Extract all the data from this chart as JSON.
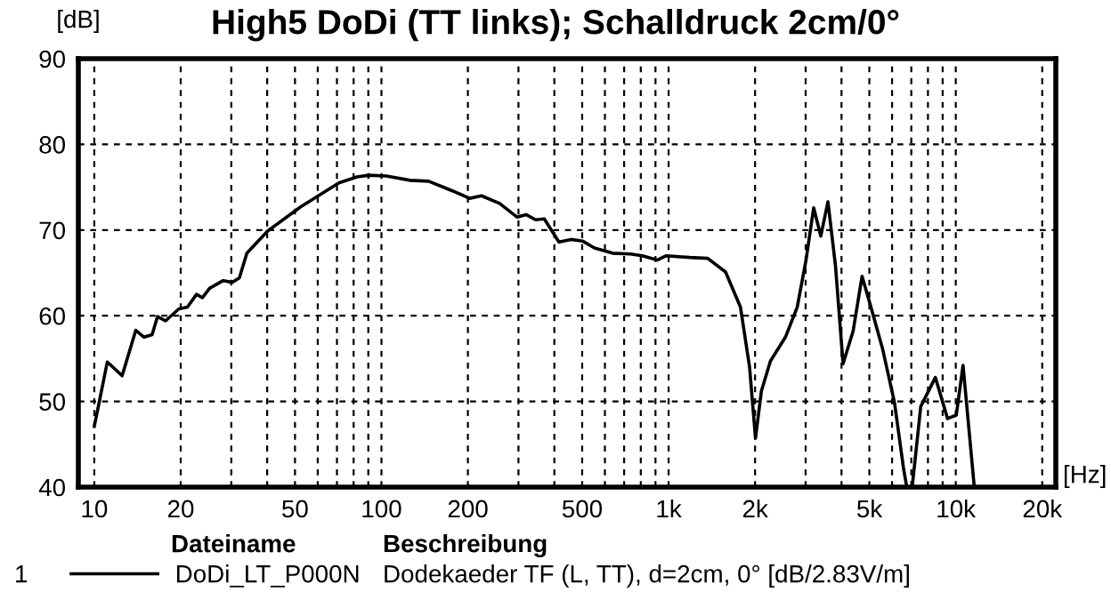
{
  "chart_data": {
    "type": "line",
    "title": "High5 DoDi (TT links); Schalldruck 2cm/0°",
    "xlabel": "[Hz]",
    "ylabel": "[dB]",
    "log": "x",
    "xlim": [
      8.8,
      22300
    ],
    "ylim": [
      40,
      90
    ],
    "xticks": [
      10,
      20,
      {
        "value": 30,
        "label": null
      },
      {
        "value": 40,
        "label": null
      },
      50,
      {
        "value": 60,
        "label": null
      },
      {
        "value": 70,
        "label": null
      },
      {
        "value": 80,
        "label": null
      },
      {
        "value": 90,
        "label": null
      },
      100,
      200,
      {
        "value": 300,
        "label": null
      },
      {
        "value": 400,
        "label": null
      },
      500,
      {
        "value": 600,
        "label": null
      },
      {
        "value": 700,
        "label": null
      },
      {
        "value": 800,
        "label": null
      },
      {
        "value": 900,
        "label": null
      },
      {
        "value": 1000,
        "label": "1k"
      },
      {
        "value": 2000,
        "label": "2k"
      },
      {
        "value": 3000,
        "label": null
      },
      {
        "value": 4000,
        "label": null
      },
      {
        "value": 5000,
        "label": "5k"
      },
      {
        "value": 6000,
        "label": null
      },
      {
        "value": 7000,
        "label": null
      },
      {
        "value": 8000,
        "label": null
      },
      {
        "value": 9000,
        "label": null
      },
      {
        "value": 10000,
        "label": "10k"
      },
      {
        "value": 20000,
        "label": "20k"
      }
    ],
    "yticks": [
      40,
      50,
      60,
      70,
      80,
      90
    ],
    "grid": true,
    "legend": "bottom",
    "line_style": "solid",
    "marker": "none",
    "annotations": [
      "Dateiname",
      "Beschreibung",
      "1",
      "Dodekaeder TF (L, TT), d=2cm, 0° [dB/2.83V/m]"
    ],
    "series": [
      {
        "name": "DoDi_LT_P000N",
        "color": "#000000",
        "x": [
          10,
          10.3,
          11.1,
          12.5,
          13.95,
          14.9,
          15.9,
          16.6,
          17.7,
          19.7,
          21.1,
          22.7,
          23.8,
          25.2,
          28.1,
          30.2,
          32,
          34,
          40.2,
          52.3,
          71.1,
          82.2,
          90.4,
          104,
          126,
          146,
          176,
          203,
          223,
          258,
          297,
          319,
          344,
          369,
          415,
          457,
          503,
          552,
          638,
          736,
          810,
          913,
          981,
          1186,
          1368,
          1579,
          1779,
          1914,
          2007,
          2104,
          2262,
          2551,
          2804,
          3010,
          3200,
          3388,
          3588,
          3812,
          4050,
          4390,
          4717,
          5065,
          5564,
          6115,
          6570,
          6750,
          7050,
          7550,
          8490,
          9360,
          10040,
          10600,
          11600
        ],
        "values": [
          47.1,
          49.2,
          54.6,
          53.0,
          58.3,
          57.5,
          57.8,
          59.9,
          59.4,
          60.8,
          61.0,
          62.5,
          62.1,
          63.2,
          64.1,
          63.9,
          64.4,
          67.3,
          69.9,
          72.7,
          75.5,
          76.2,
          76.4,
          76.3,
          75.8,
          75.7,
          74.6,
          73.7,
          74.0,
          73.1,
          71.5,
          71.8,
          71.2,
          71.3,
          68.6,
          68.9,
          68.7,
          67.9,
          67.3,
          67.2,
          67.0,
          66.5,
          67.0,
          66.8,
          66.7,
          65.1,
          61.0,
          54.0,
          45.7,
          51.2,
          54.7,
          57.5,
          61.0,
          66.5,
          72.6,
          69.3,
          73.3,
          65.8,
          54.4,
          58.2,
          64.6,
          61.0,
          56.1,
          49.9,
          42.3,
          40,
          40,
          49.4,
          52.8,
          48.0,
          48.4,
          54.2,
          40
        ]
      }
    ]
  }
}
